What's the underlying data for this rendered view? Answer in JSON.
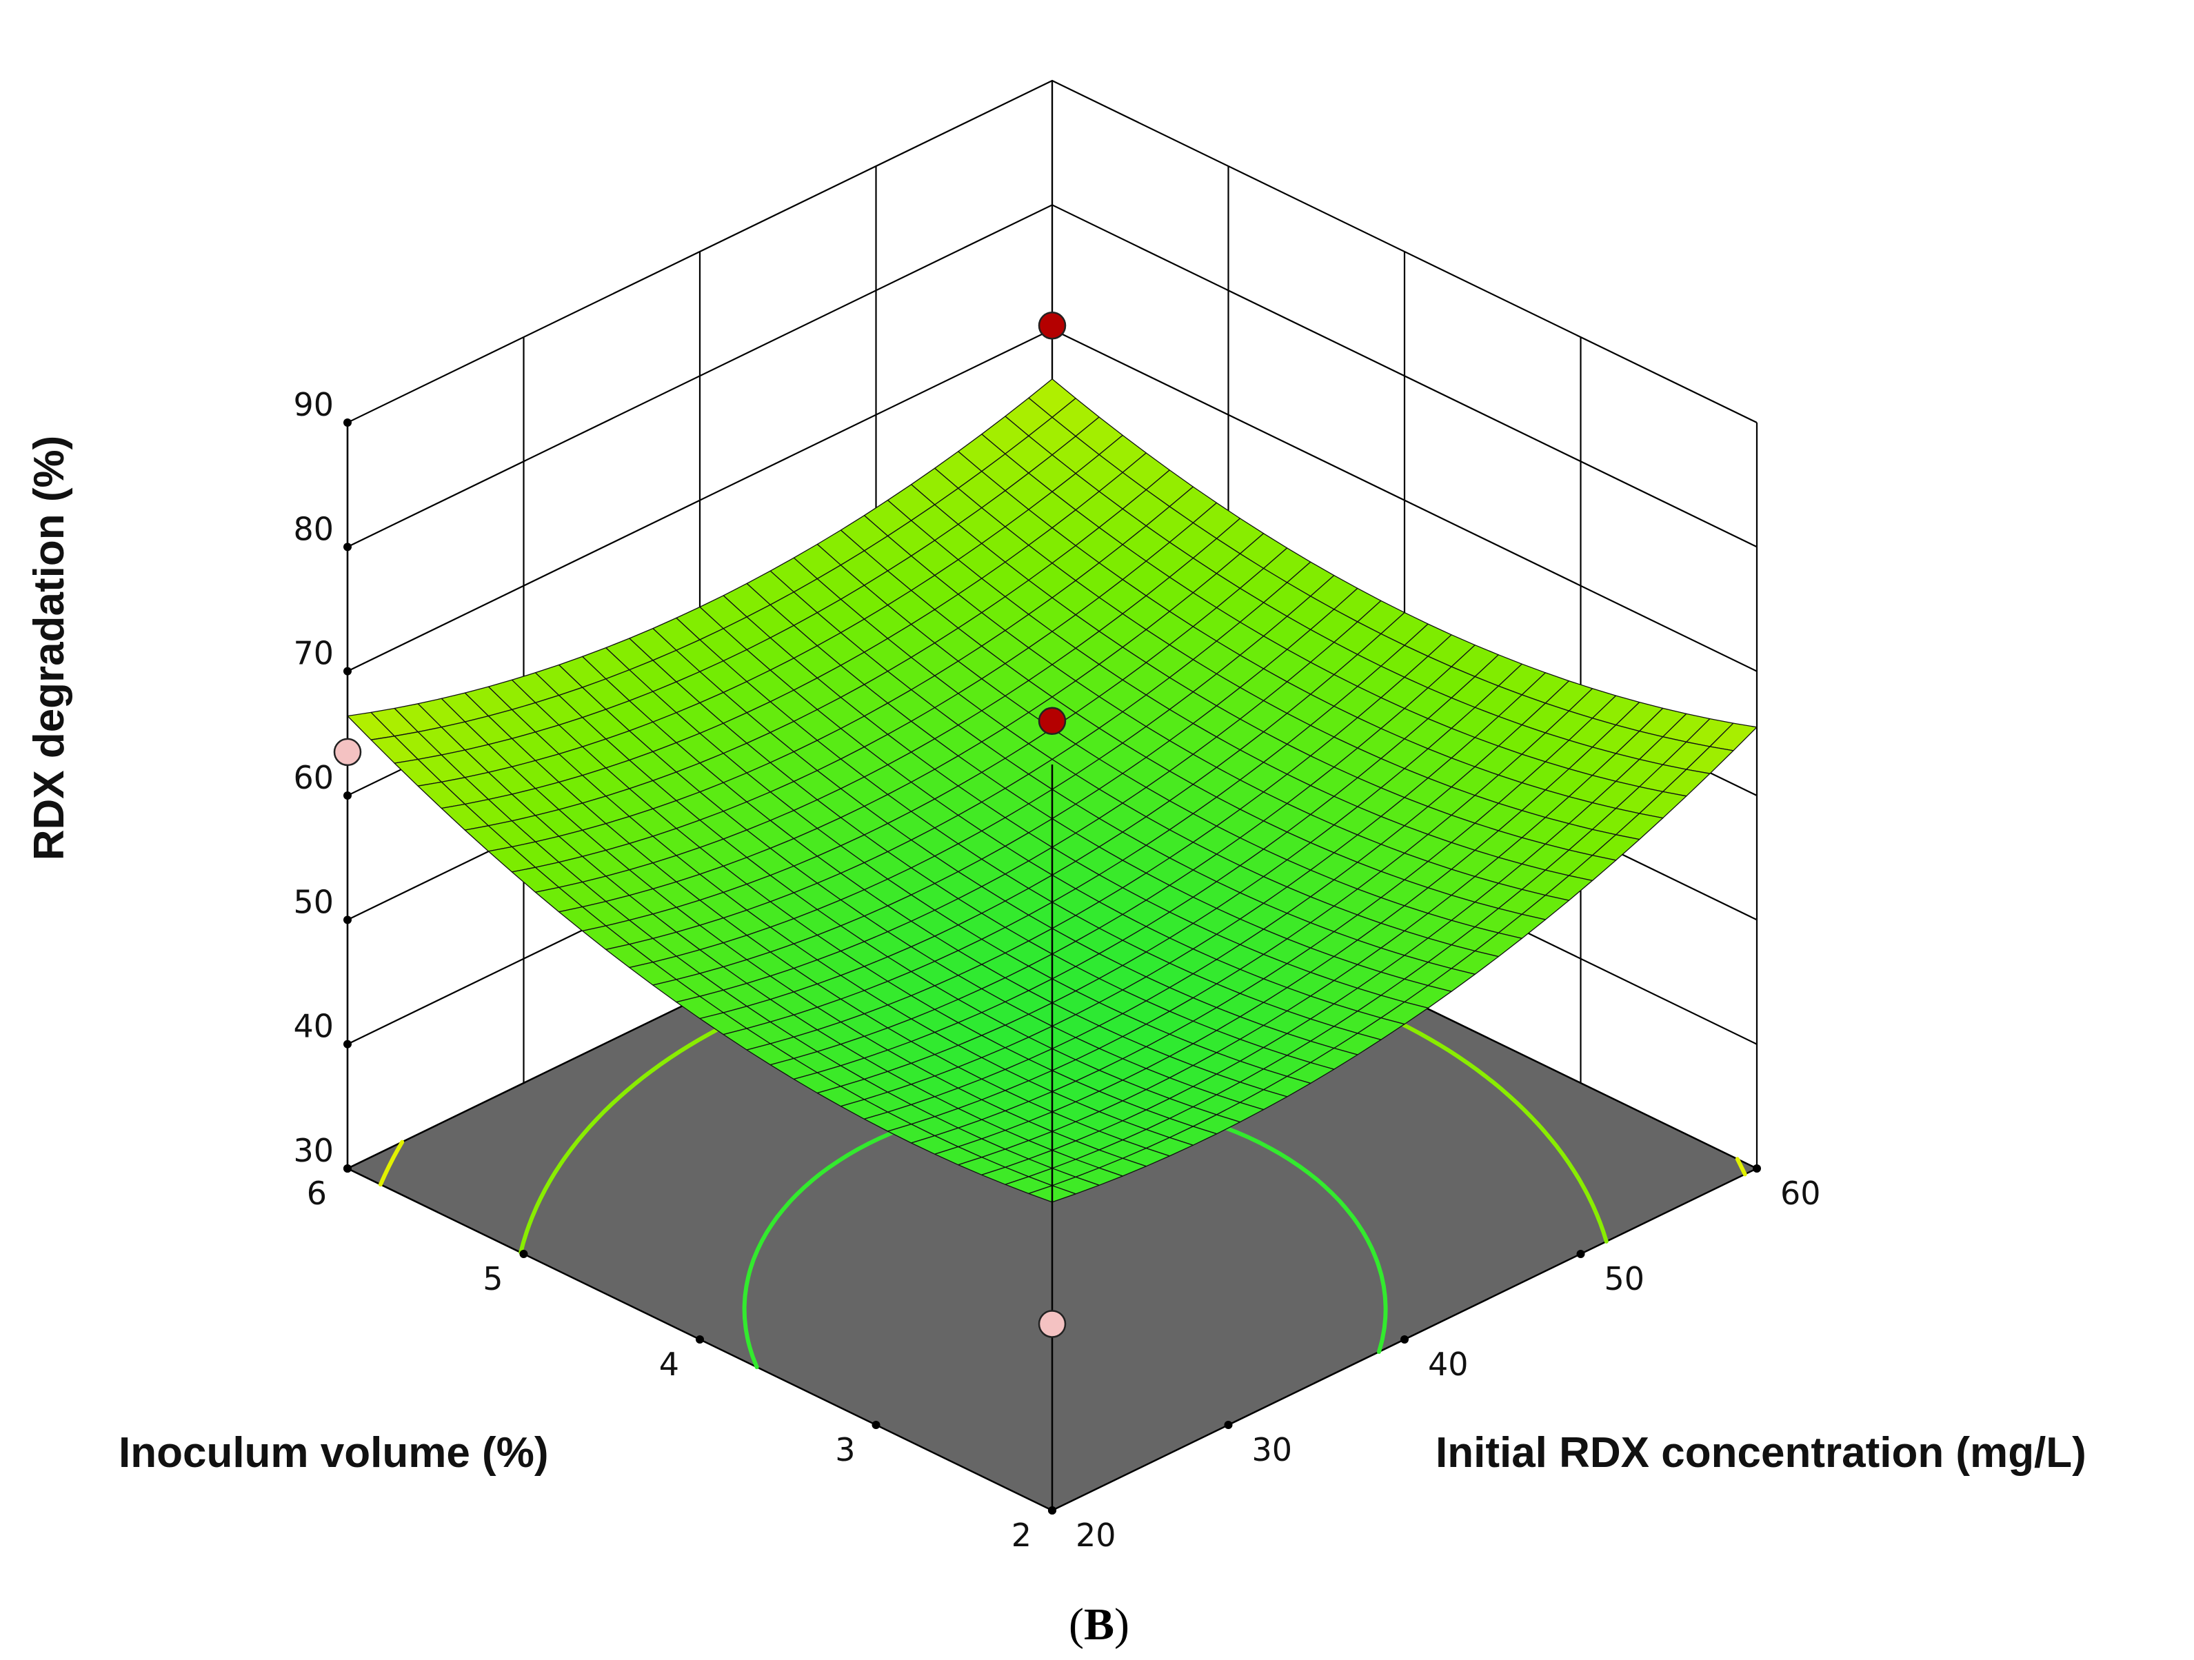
{
  "chart_data": {
    "type": "surface3d",
    "panel_label_open": "(",
    "panel_label_letter": "B",
    "panel_label_close": ")",
    "zlabel": "RDX degradation (%)",
    "xlabel": "Inoculum volume (%)",
    "ylabel": "Initial RDX concentration (mg/L)",
    "x_axis": {
      "name": "Inoculum volume (%)",
      "range": [
        2,
        6
      ],
      "ticks": [
        2,
        3,
        4,
        5,
        6
      ]
    },
    "y_axis": {
      "name": "Initial RDX concentration (mg/L)",
      "range": [
        20,
        60
      ],
      "ticks": [
        20,
        30,
        40,
        50,
        60
      ]
    },
    "z_axis": {
      "name": "RDX degradation (%)",
      "range": [
        30,
        90
      ],
      "ticks": [
        30,
        40,
        50,
        60,
        70,
        80,
        90
      ]
    },
    "surface_corners": {
      "x2_y20": 54.8,
      "x6_y20": 66.4,
      "x2_y60": 65.5,
      "x6_y60": 66.0
    },
    "surface_center": 53.6,
    "design_points": [
      {
        "x": 2,
        "y": 20,
        "z": 45.0,
        "above_surface": false
      },
      {
        "x": 4,
        "y": 40,
        "z": 66.0,
        "above_surface": true
      },
      {
        "x": 6,
        "y": 20,
        "z": 63.5,
        "above_surface": false
      },
      {
        "x": 6,
        "y": 60,
        "z": 70.3,
        "above_surface": true
      }
    ],
    "contour_levels": [
      55,
      60,
      65
    ],
    "colors": {
      "surface_low": "#00e850",
      "surface_mid": "#78ec00",
      "surface_high": "#f2f200",
      "floor": "#666666",
      "grid": "#000000",
      "point_above": "#b40000",
      "point_below": "#f4c2c2"
    }
  }
}
